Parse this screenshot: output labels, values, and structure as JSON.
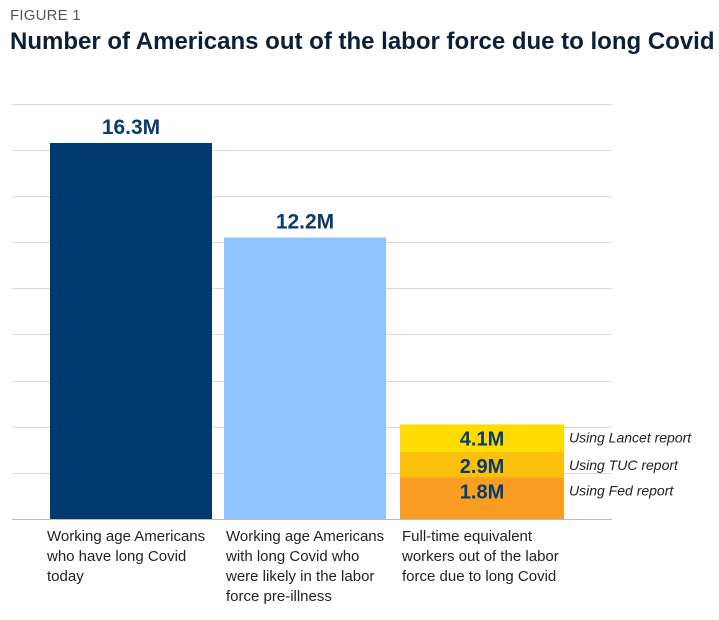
{
  "figure_label": "FIGURE 1",
  "title": "Number of Americans out of the labor force due to long Covid",
  "colors": {
    "bar1": "#003a70",
    "bar2": "#8ec5ff",
    "stack_lancet": "#ffdc00",
    "stack_tuc": "#fbbf0d",
    "stack_fed": "#f99e22",
    "value_text": "#0b3a6e",
    "grid": "#d9d9d9"
  },
  "chart_data": {
    "type": "bar",
    "title": "Number of Americans out of the labor force due to long Covid",
    "xlabel": "",
    "ylabel": "",
    "ylim": [
      0,
      18
    ],
    "grid": true,
    "categories": [
      "Working age Americans who have long Covid today",
      "Working age Americans with long Covid who were likely in the labor force pre-illness",
      "Full-time equivalent workers out of the labor force due to long Covid"
    ],
    "bars": [
      {
        "value": 16.3,
        "label": "16.3M"
      },
      {
        "value": 12.2,
        "label": "12.2M"
      }
    ],
    "overlapping_estimates": [
      {
        "name": "Using Lancet report",
        "value": 4.1,
        "label": "4.1M"
      },
      {
        "name": "Using TUC report",
        "value": 2.9,
        "label": "2.9M"
      },
      {
        "name": "Using Fed report",
        "value": 1.8,
        "label": "1.8M"
      }
    ]
  }
}
